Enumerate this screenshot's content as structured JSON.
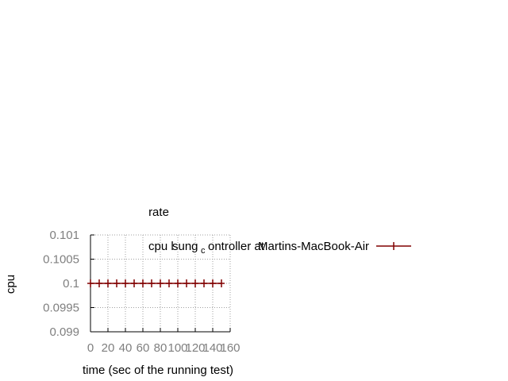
{
  "chart_data": {
    "type": "line",
    "title": "rate",
    "xlabel": "time (sec of the running test)",
    "ylabel": "cpu",
    "xlim": [
      0,
      160
    ],
    "ylim": [
      0.099,
      0.101
    ],
    "xticks": [
      0,
      20,
      40,
      60,
      80,
      100,
      120,
      140,
      160
    ],
    "xtick_labels": [
      "0",
      "20",
      "40",
      "60",
      "80",
      "100",
      "120",
      "140",
      "160"
    ],
    "yticks": [
      0.099,
      0.0995,
      0.1,
      0.1005,
      0.101
    ],
    "ytick_labels": [
      "0.099",
      "0.0995",
      "0.1",
      "0.1005",
      "0.101"
    ],
    "grid": true,
    "legend_position": "top-right",
    "series": [
      {
        "name": "cpu l",
        "legend_parts": [
          "cpu l",
          "sung",
          "c",
          "ontroller at",
          "Martins-MacBook-Air"
        ],
        "color": "#800000",
        "marker": "plus",
        "x": [
          0,
          10,
          20,
          30,
          40,
          50,
          60,
          70,
          80,
          90,
          100,
          110,
          120,
          130,
          140,
          150
        ],
        "y": [
          0.1,
          0.1,
          0.1,
          0.1,
          0.1,
          0.1,
          0.1,
          0.1,
          0.1,
          0.1,
          0.1,
          0.1,
          0.1,
          0.1,
          0.1,
          0.1
        ]
      }
    ]
  }
}
